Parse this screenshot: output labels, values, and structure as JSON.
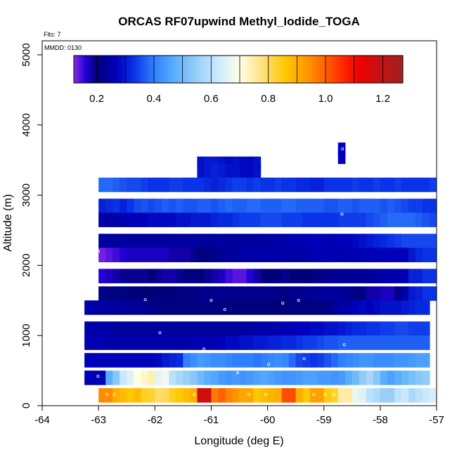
{
  "chart_data": {
    "type": "heatmap",
    "title": "ORCAS RF07upwind Methyl_Iodide_TOGA",
    "flights_note": "Flts: 7",
    "date_note": "MMDD: 0130",
    "xlabel": "Longitude (deg E)",
    "ylabel": "Altitude (m)",
    "xlim": [
      -64,
      -57
    ],
    "ylim": [
      0,
      5200
    ],
    "xticks": [
      -64,
      -63,
      -62,
      -61,
      -60,
      -59,
      -58,
      -57
    ],
    "yticks": [
      0,
      1000,
      2000,
      3000,
      4000,
      5000
    ],
    "colorbar": {
      "range": [
        0.12,
        1.27
      ],
      "ticks": [
        0.2,
        0.4,
        0.6,
        0.8,
        1.0,
        1.2
      ],
      "tick_labels": [
        "0.2",
        "0.4",
        "0.6",
        "0.8",
        "1.0",
        "1.2"
      ],
      "boundaries": [
        0.12,
        0.2,
        0.3,
        0.4,
        0.5,
        0.6,
        0.7,
        0.8,
        0.9,
        1.0,
        1.1,
        1.2,
        1.27
      ],
      "stops": [
        [
          0.12,
          "#8c2be2"
        ],
        [
          0.16,
          "#2400d8"
        ],
        [
          0.2,
          "#00007a"
        ],
        [
          0.27,
          "#0000bb"
        ],
        [
          0.33,
          "#0a32e6"
        ],
        [
          0.4,
          "#2f80ff"
        ],
        [
          0.47,
          "#58aefc"
        ],
        [
          0.55,
          "#98cff8"
        ],
        [
          0.62,
          "#c8e8ff"
        ],
        [
          0.7,
          "#ffffe6"
        ],
        [
          0.78,
          "#ffe07a"
        ],
        [
          0.86,
          "#ffc800"
        ],
        [
          0.94,
          "#ff9400"
        ],
        [
          1.0,
          "#ff6000"
        ],
        [
          1.06,
          "#ff2800"
        ],
        [
          1.12,
          "#ee0000"
        ],
        [
          1.18,
          "#c81010"
        ],
        [
          1.27,
          "#a02020"
        ]
      ]
    },
    "cell_size": {
      "dlon": 0.25,
      "dalt": 100
    },
    "rows": [
      {
        "alt": 3650,
        "lon0": -58.75,
        "values": [
          0.27
        ]
      },
      {
        "alt": 3550,
        "lon0": -58.75,
        "values": [
          0.27
        ]
      },
      {
        "alt": 3450,
        "lon0": -61.25,
        "values": [
          0.29,
          0.3,
          0.3,
          0.29,
          0.28,
          0.29,
          0.28,
          0.28,
          0.29
        ]
      },
      {
        "alt": 3350,
        "lon0": -61.25,
        "values": [
          0.29,
          0.3,
          0.31,
          0.3,
          0.29,
          0.29,
          0.28,
          0.28,
          0.29
        ]
      },
      {
        "alt": 3150,
        "lon0": -63.0,
        "values": [
          0.38,
          0.38,
          0.37,
          0.36,
          0.35,
          0.35,
          0.34,
          0.33,
          0.33,
          0.33,
          0.34,
          0.34,
          0.33,
          0.33,
          0.33,
          0.32,
          0.31,
          0.32,
          0.33,
          0.34,
          0.34,
          0.33,
          0.34,
          0.33,
          0.33,
          0.34,
          0.33,
          0.33,
          0.32,
          0.32,
          0.31,
          0.31,
          0.33,
          0.33,
          0.33,
          0.33,
          0.34,
          0.33,
          0.33,
          0.34,
          0.33,
          0.33,
          0.34,
          0.33,
          0.33,
          0.33,
          0.33,
          0.34
        ]
      },
      {
        "alt": 2850,
        "lon0": -63.0,
        "values": [
          0.31,
          0.32,
          0.33,
          0.31,
          0.33,
          0.35,
          0.36,
          0.35,
          0.36,
          0.37,
          0.36,
          0.37,
          0.36,
          0.36,
          0.37,
          0.37,
          0.36,
          0.37,
          0.38,
          0.37,
          0.37,
          0.38,
          0.38,
          0.37,
          0.37,
          0.37,
          0.38,
          0.38,
          0.37,
          0.37,
          0.37,
          0.37,
          0.36,
          0.36,
          0.37,
          0.37,
          0.36,
          0.37,
          0.37,
          0.37,
          0.36,
          0.37,
          0.36,
          0.35,
          0.34,
          0.34,
          0.33,
          0.33
        ]
      },
      {
        "alt": 2650,
        "lon0": -63.0,
        "values": [
          0.25,
          0.25,
          0.25,
          0.26,
          0.27,
          0.27,
          0.27,
          0.28,
          0.28,
          0.28,
          0.28,
          0.29,
          0.29,
          0.3,
          0.3,
          0.3,
          0.31,
          0.32,
          0.32,
          0.33,
          0.34,
          0.34,
          0.34,
          0.35,
          0.35,
          0.35,
          0.34,
          0.34,
          0.34,
          0.33,
          0.33,
          0.33,
          0.33,
          0.33,
          0.34,
          0.34,
          0.34,
          0.34,
          0.35,
          0.36,
          0.37,
          0.38,
          0.38,
          0.38,
          0.38,
          0.37,
          0.36,
          0.35
        ]
      },
      {
        "alt": 2350,
        "lon0": -63.0,
        "values": [
          0.24,
          0.24,
          0.24,
          0.24,
          0.24,
          0.24,
          0.24,
          0.24,
          0.24,
          0.24,
          0.24,
          0.24,
          0.24,
          0.24,
          0.24,
          0.24,
          0.24,
          0.24,
          0.24,
          0.24,
          0.24,
          0.24,
          0.24,
          0.24,
          0.24,
          0.25,
          0.25,
          0.26,
          0.26,
          0.26,
          0.27,
          0.27,
          0.26,
          0.26,
          0.27,
          0.27,
          0.28,
          0.29,
          0.3,
          0.31,
          0.32,
          0.33,
          0.34,
          0.35,
          0.35,
          0.35,
          0.35,
          0.35
        ]
      },
      {
        "alt": 2150,
        "lon0": -63.0,
        "values": [
          0.13,
          0.14,
          0.15,
          0.16,
          0.17,
          0.17,
          0.17,
          0.17,
          0.17,
          0.17,
          0.18,
          0.18,
          0.18,
          0.19,
          0.2,
          0.21,
          0.22,
          0.23,
          0.24,
          0.24,
          0.25,
          0.25,
          0.25,
          0.25,
          0.25,
          0.25,
          0.25,
          0.25,
          0.25,
          0.25,
          0.26,
          0.26,
          0.26,
          0.26,
          0.26,
          0.26,
          0.26,
          0.26,
          0.27,
          0.27,
          0.27,
          0.27,
          0.27,
          0.27,
          0.3,
          0.32,
          0.33,
          0.33
        ]
      },
      {
        "alt": 1850,
        "lon0": -63.0,
        "values": [
          0.16,
          0.17,
          0.18,
          0.19,
          0.19,
          0.19,
          0.19,
          0.2,
          0.19,
          0.18,
          0.18,
          0.19,
          0.2,
          0.21,
          0.2,
          0.19,
          0.18,
          0.17,
          0.15,
          0.14,
          0.14,
          0.16,
          0.18,
          0.2,
          0.2,
          0.2,
          0.19,
          0.2,
          0.2,
          0.2,
          0.21,
          0.22,
          0.22,
          0.23,
          0.23,
          0.23,
          0.23,
          0.23,
          0.24,
          0.24,
          0.25,
          0.25,
          0.26,
          0.26,
          0.31,
          0.31,
          0.33,
          0.33
        ]
      },
      {
        "alt": 1600,
        "lon0": -63.0,
        "values": [
          0.21,
          0.21,
          0.21,
          0.21,
          0.2,
          0.2,
          0.2,
          0.2,
          0.2,
          0.2,
          0.2,
          0.21,
          0.21,
          0.21,
          0.22,
          0.22,
          0.22,
          0.22,
          0.22,
          0.22,
          0.22,
          0.22,
          0.22,
          0.22,
          0.22,
          0.21,
          0.21,
          0.22,
          0.22,
          0.23,
          0.23,
          0.24,
          0.24,
          0.24,
          0.23,
          0.22,
          0.21,
          0.21,
          0.18,
          0.18,
          0.17,
          0.17,
          0.22,
          0.25,
          0.3,
          0.31,
          0.33,
          0.33
        ]
      },
      {
        "alt": 1400,
        "lon0": -63.25,
        "values": [
          0.25,
          0.25,
          0.24,
          0.24,
          0.24,
          0.24,
          0.23,
          0.23,
          0.22,
          0.22,
          0.21,
          0.21,
          0.21,
          0.21,
          0.21,
          0.21,
          0.21,
          0.21,
          0.21,
          0.21,
          0.21,
          0.2,
          0.2,
          0.2,
          0.2,
          0.2,
          0.2,
          0.2,
          0.2,
          0.21,
          0.21,
          0.21,
          0.21,
          0.21,
          0.21,
          0.23,
          0.25,
          0.25,
          0.27,
          0.28,
          0.27,
          0.28,
          0.29,
          0.29,
          0.29,
          0.3,
          0.31,
          0.32,
          0.32
        ]
      },
      {
        "alt": 1100,
        "lon0": -63.25,
        "values": [
          0.25,
          0.25,
          0.25,
          0.25,
          0.24,
          0.24,
          0.24,
          0.24,
          0.24,
          0.24,
          0.24,
          0.24,
          0.24,
          0.24,
          0.24,
          0.24,
          0.24,
          0.24,
          0.24,
          0.24,
          0.24,
          0.24,
          0.24,
          0.24,
          0.25,
          0.25,
          0.25,
          0.26,
          0.26,
          0.26,
          0.27,
          0.27,
          0.28,
          0.28,
          0.29,
          0.29,
          0.3,
          0.31,
          0.32,
          0.32,
          0.33,
          0.33,
          0.34,
          0.34,
          0.35,
          0.35,
          0.34,
          0.34,
          0.34
        ]
      },
      {
        "alt": 900,
        "lon0": -63.25,
        "values": [
          0.26,
          0.26,
          0.26,
          0.25,
          0.25,
          0.25,
          0.25,
          0.25,
          0.25,
          0.25,
          0.25,
          0.25,
          0.25,
          0.25,
          0.25,
          0.26,
          0.26,
          0.26,
          0.26,
          0.27,
          0.28,
          0.28,
          0.29,
          0.29,
          0.3,
          0.3,
          0.31,
          0.31,
          0.32,
          0.32,
          0.33,
          0.34,
          0.34,
          0.35,
          0.36,
          0.36,
          0.37,
          0.37,
          0.37,
          0.37,
          0.37,
          0.37,
          0.37,
          0.37,
          0.37,
          0.37,
          0.37,
          0.37,
          0.37
        ]
      },
      {
        "alt": 650,
        "lon0": -63.25,
        "values": [
          0.27,
          0.27,
          0.27,
          0.27,
          0.27,
          0.27,
          0.27,
          0.27,
          0.27,
          0.27,
          0.28,
          0.3,
          0.31,
          0.32,
          0.4,
          0.42,
          0.44,
          0.43,
          0.42,
          0.42,
          0.41,
          0.4,
          0.4,
          0.4,
          0.39,
          0.4,
          0.41,
          0.42,
          0.41,
          0.38,
          0.35,
          0.34,
          0.33,
          0.34,
          0.36,
          0.38,
          0.4,
          0.41,
          0.42,
          0.43,
          0.43,
          0.42,
          0.42,
          0.42,
          0.43,
          0.43,
          0.44,
          0.45,
          0.45
        ]
      },
      {
        "alt": 400,
        "lon0": -63.25,
        "values": [
          0.27,
          0.27,
          0.27,
          0.47,
          0.53,
          0.62,
          0.65,
          0.7,
          0.72,
          0.74,
          0.66,
          0.68,
          0.6,
          0.57,
          0.55,
          0.53,
          0.5,
          0.47,
          0.46,
          0.44,
          0.43,
          0.44,
          0.43,
          0.44,
          0.45,
          0.46,
          0.45,
          0.44,
          0.43,
          0.43,
          0.44,
          0.45,
          0.45,
          0.44,
          0.44,
          0.43,
          0.44,
          0.47,
          0.5,
          0.54,
          0.57,
          0.53,
          0.47,
          0.45,
          0.47,
          0.49,
          0.51,
          0.53,
          0.54
        ]
      },
      {
        "alt": 150,
        "lon0": -63.0,
        "values": [
          0.95,
          0.95,
          0.9,
          0.88,
          0.86,
          0.88,
          0.84,
          0.83,
          0.79,
          0.8,
          0.84,
          0.86,
          0.88,
          0.9,
          1.17,
          1.16,
          0.97,
          1.0,
          0.96,
          0.94,
          0.91,
          0.91,
          0.86,
          0.88,
          0.89,
          0.9,
          1.02,
          1.02,
          0.9,
          0.86,
          0.92,
          0.92,
          0.85,
          0.83,
          0.75,
          0.75,
          0.67,
          0.65,
          0.6,
          0.58,
          0.55,
          0.55,
          0.6,
          0.62,
          0.58,
          0.6,
          0.62,
          0.64
        ]
      }
    ],
    "sample_points": [
      {
        "lon": -58.67,
        "alt": 3660
      },
      {
        "lon": -63.24,
        "alt": 3130
      },
      {
        "lon": -58.68,
        "alt": 2730
      },
      {
        "lon": -63.0,
        "alt": 2200
      },
      {
        "lon": -62.17,
        "alt": 1510
      },
      {
        "lon": -61.0,
        "alt": 1500
      },
      {
        "lon": -60.76,
        "alt": 1370
      },
      {
        "lon": -59.73,
        "alt": 1460
      },
      {
        "lon": -59.45,
        "alt": 1500
      },
      {
        "lon": -63.17,
        "alt": 1270
      },
      {
        "lon": -61.91,
        "alt": 1040
      },
      {
        "lon": -61.13,
        "alt": 810
      },
      {
        "lon": -58.64,
        "alt": 870
      },
      {
        "lon": -59.35,
        "alt": 670
      },
      {
        "lon": -59.98,
        "alt": 590
      },
      {
        "lon": -60.53,
        "alt": 470
      },
      {
        "lon": -63.01,
        "alt": 420
      },
      {
        "lon": -62.85,
        "alt": 160
      },
      {
        "lon": -62.72,
        "alt": 160
      },
      {
        "lon": -61.3,
        "alt": 160
      },
      {
        "lon": -60.33,
        "alt": 160
      },
      {
        "lon": -60.03,
        "alt": 160
      },
      {
        "lon": -59.18,
        "alt": 160
      },
      {
        "lon": -58.98,
        "alt": 160
      },
      {
        "lon": -58.82,
        "alt": 160
      }
    ]
  }
}
